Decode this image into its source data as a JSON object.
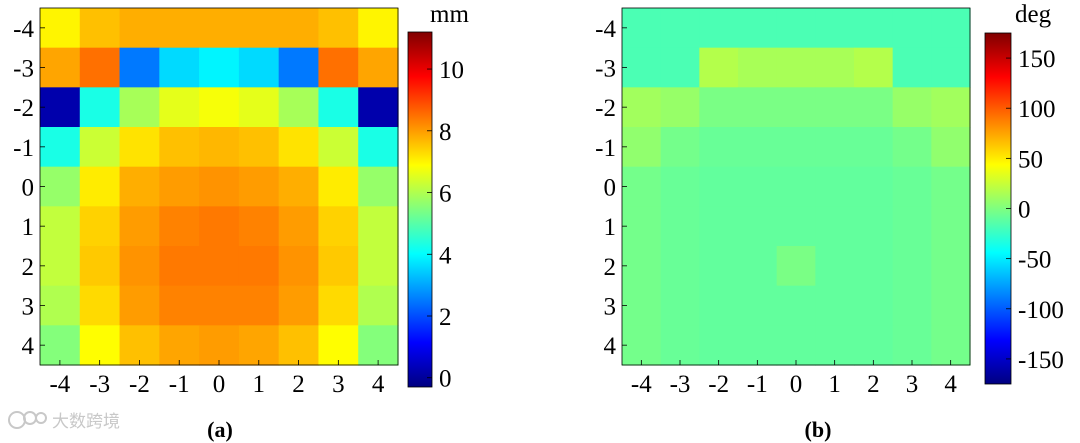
{
  "chart_data": [
    {
      "type": "heatmap",
      "panel_label": "(a)",
      "colorbar_label": "mm",
      "x_ticks": [
        -4,
        -3,
        -2,
        -1,
        0,
        1,
        2,
        3,
        4
      ],
      "y_ticks": [
        -4,
        -3,
        -2,
        -1,
        0,
        1,
        2,
        3,
        4
      ],
      "colorbar_range": [
        -0.3,
        11.2
      ],
      "colorbar_ticks": [
        0,
        2,
        4,
        6,
        8,
        10
      ],
      "colormap": "jet",
      "values": [
        [
          7.0,
          7.6,
          7.8,
          7.8,
          7.8,
          7.8,
          7.8,
          7.6,
          7.0
        ],
        [
          7.9,
          8.5,
          2.5,
          3.6,
          3.9,
          3.6,
          2.5,
          8.5,
          7.9
        ],
        [
          0.2,
          4.3,
          5.9,
          6.6,
          6.8,
          6.6,
          5.9,
          4.3,
          0.2
        ],
        [
          4.3,
          6.3,
          7.2,
          7.6,
          7.7,
          7.6,
          7.2,
          6.3,
          4.3
        ],
        [
          5.7,
          7.1,
          7.8,
          8.0,
          8.1,
          8.0,
          7.8,
          7.1,
          5.7
        ],
        [
          6.2,
          7.4,
          8.0,
          8.3,
          8.4,
          8.3,
          8.0,
          7.4,
          6.2
        ],
        [
          6.2,
          7.5,
          8.1,
          8.4,
          8.4,
          8.4,
          8.1,
          7.5,
          6.2
        ],
        [
          6.0,
          7.3,
          8.0,
          8.3,
          8.3,
          8.3,
          8.0,
          7.3,
          6.0
        ],
        [
          5.5,
          6.9,
          7.6,
          7.9,
          8.0,
          7.9,
          7.6,
          6.9,
          5.5
        ]
      ]
    },
    {
      "type": "heatmap",
      "panel_label": "(b)",
      "colorbar_label": "deg",
      "x_ticks": [
        -4,
        -3,
        -2,
        -1,
        0,
        1,
        2,
        3,
        4
      ],
      "y_ticks": [
        -4,
        -3,
        -2,
        -1,
        0,
        1,
        2,
        3,
        4
      ],
      "colorbar_range": [
        -175,
        175
      ],
      "colorbar_ticks": [
        -150,
        -100,
        -50,
        0,
        50,
        100,
        150
      ],
      "colormap": "jet",
      "values": [
        [
          -18,
          -18,
          -18,
          -18,
          -18,
          -18,
          -18,
          -18,
          -18
        ],
        [
          -18,
          -18,
          18,
          14,
          14,
          14,
          18,
          -18,
          -18
        ],
        [
          12,
          8,
          -2,
          -2,
          -2,
          -2,
          -2,
          8,
          12
        ],
        [
          6,
          -4,
          -8,
          -8,
          -8,
          -8,
          -8,
          -4,
          6
        ],
        [
          -4,
          -8,
          -10,
          -10,
          -10,
          -10,
          -10,
          -8,
          -4
        ],
        [
          -4,
          -8,
          -10,
          -10,
          -10,
          -10,
          -10,
          -8,
          -4
        ],
        [
          -4,
          -8,
          -10,
          -10,
          -2,
          -10,
          -10,
          -8,
          -4
        ],
        [
          -4,
          -8,
          -10,
          -10,
          -10,
          -10,
          -10,
          -8,
          -4
        ],
        [
          -4,
          -8,
          -10,
          -10,
          -10,
          -10,
          -10,
          -8,
          -4
        ]
      ]
    }
  ],
  "watermark": "大数跨境"
}
